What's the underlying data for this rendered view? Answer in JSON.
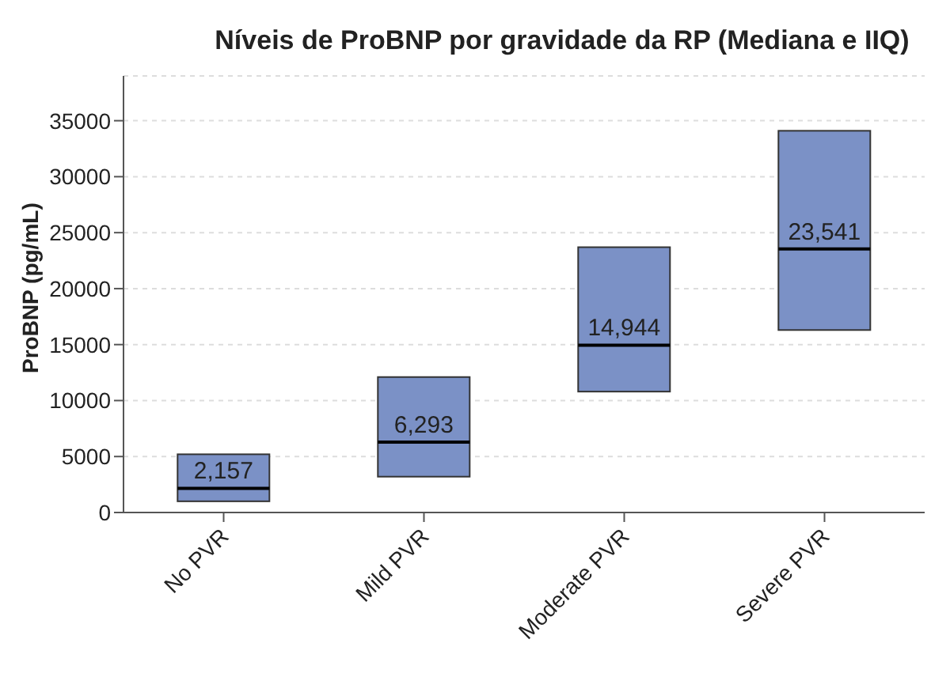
{
  "chart_data": {
    "type": "box",
    "title": "Níveis de ProBNP por gravidade da RP (Mediana e IIQ)",
    "ylabel": "ProBNP (pg/mL)",
    "categories": [
      "No PVR",
      "Mild PVR",
      "Moderate PVR",
      "Severe PVR"
    ],
    "boxes": [
      {
        "low": 1000,
        "q1": 1000,
        "median": 2157,
        "q3": 5200,
        "high": 5200
      },
      {
        "low": 3200,
        "q1": 3200,
        "median": 6293,
        "q3": 12100,
        "high": 12100
      },
      {
        "low": 10800,
        "q1": 10800,
        "median": 14944,
        "q3": 23700,
        "high": 23700
      },
      {
        "low": 16300,
        "q1": 16300,
        "median": 23541,
        "q3": 34100,
        "high": 34100
      }
    ],
    "value_labels": [
      "2,157",
      "6,293",
      "14,944",
      "23,541"
    ],
    "color": "#7b91c6",
    "ylim": [
      0,
      39000
    ],
    "yticks": [
      0,
      5000,
      10000,
      15000,
      20000,
      25000,
      30000,
      35000
    ],
    "grid": "y"
  }
}
